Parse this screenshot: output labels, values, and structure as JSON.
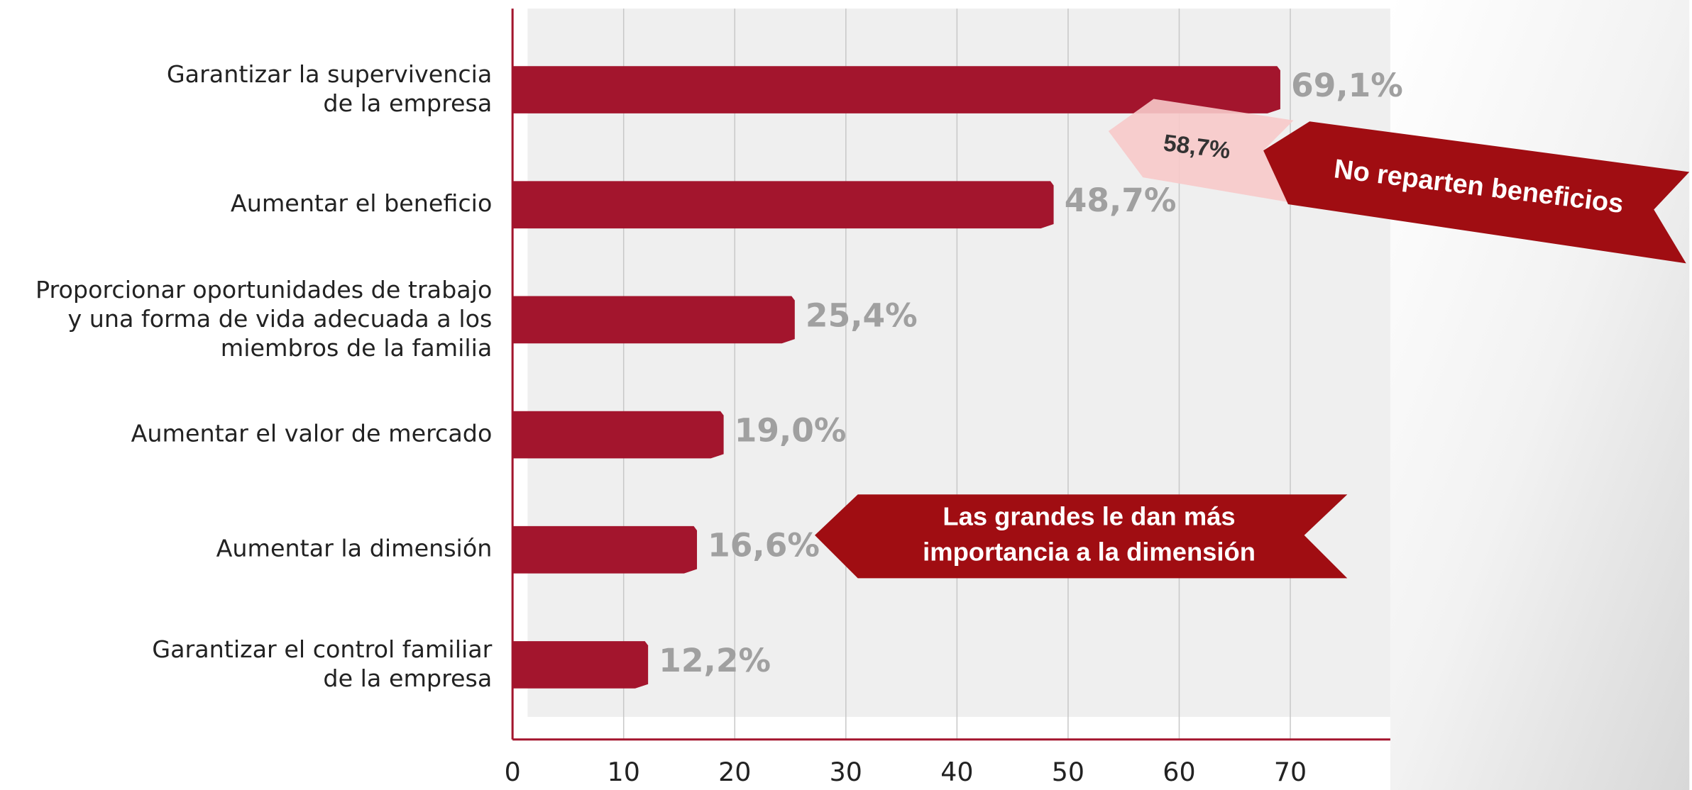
{
  "chart_data": {
    "type": "barh",
    "categories": [
      "Garantizar la supervivencia\nde la empresa",
      "Aumentar el beneficio",
      "Proporcionar oportunidades de trabajo\ny una forma de vida adecuada a los\nmiembros de la familia",
      "Aumentar el valor de mercado",
      "Aumentar la dimensión",
      "Garantizar el control familiar\nde la empresa"
    ],
    "values": [
      69.1,
      48.7,
      25.4,
      19.0,
      16.6,
      12.2
    ],
    "value_labels": [
      "69,1%",
      "48,7%",
      "25,4%",
      "19,0%",
      "16,6%",
      "12,2%"
    ],
    "color": "#a3152d",
    "xlim": [
      0,
      79
    ],
    "xticks": [
      0,
      10,
      20,
      30,
      40,
      50,
      60,
      70
    ],
    "grid": true,
    "annotations": [
      "58,7%",
      "No reparten beneficios",
      "Las grandes le dan más\nimportancia a la dimensión"
    ]
  }
}
